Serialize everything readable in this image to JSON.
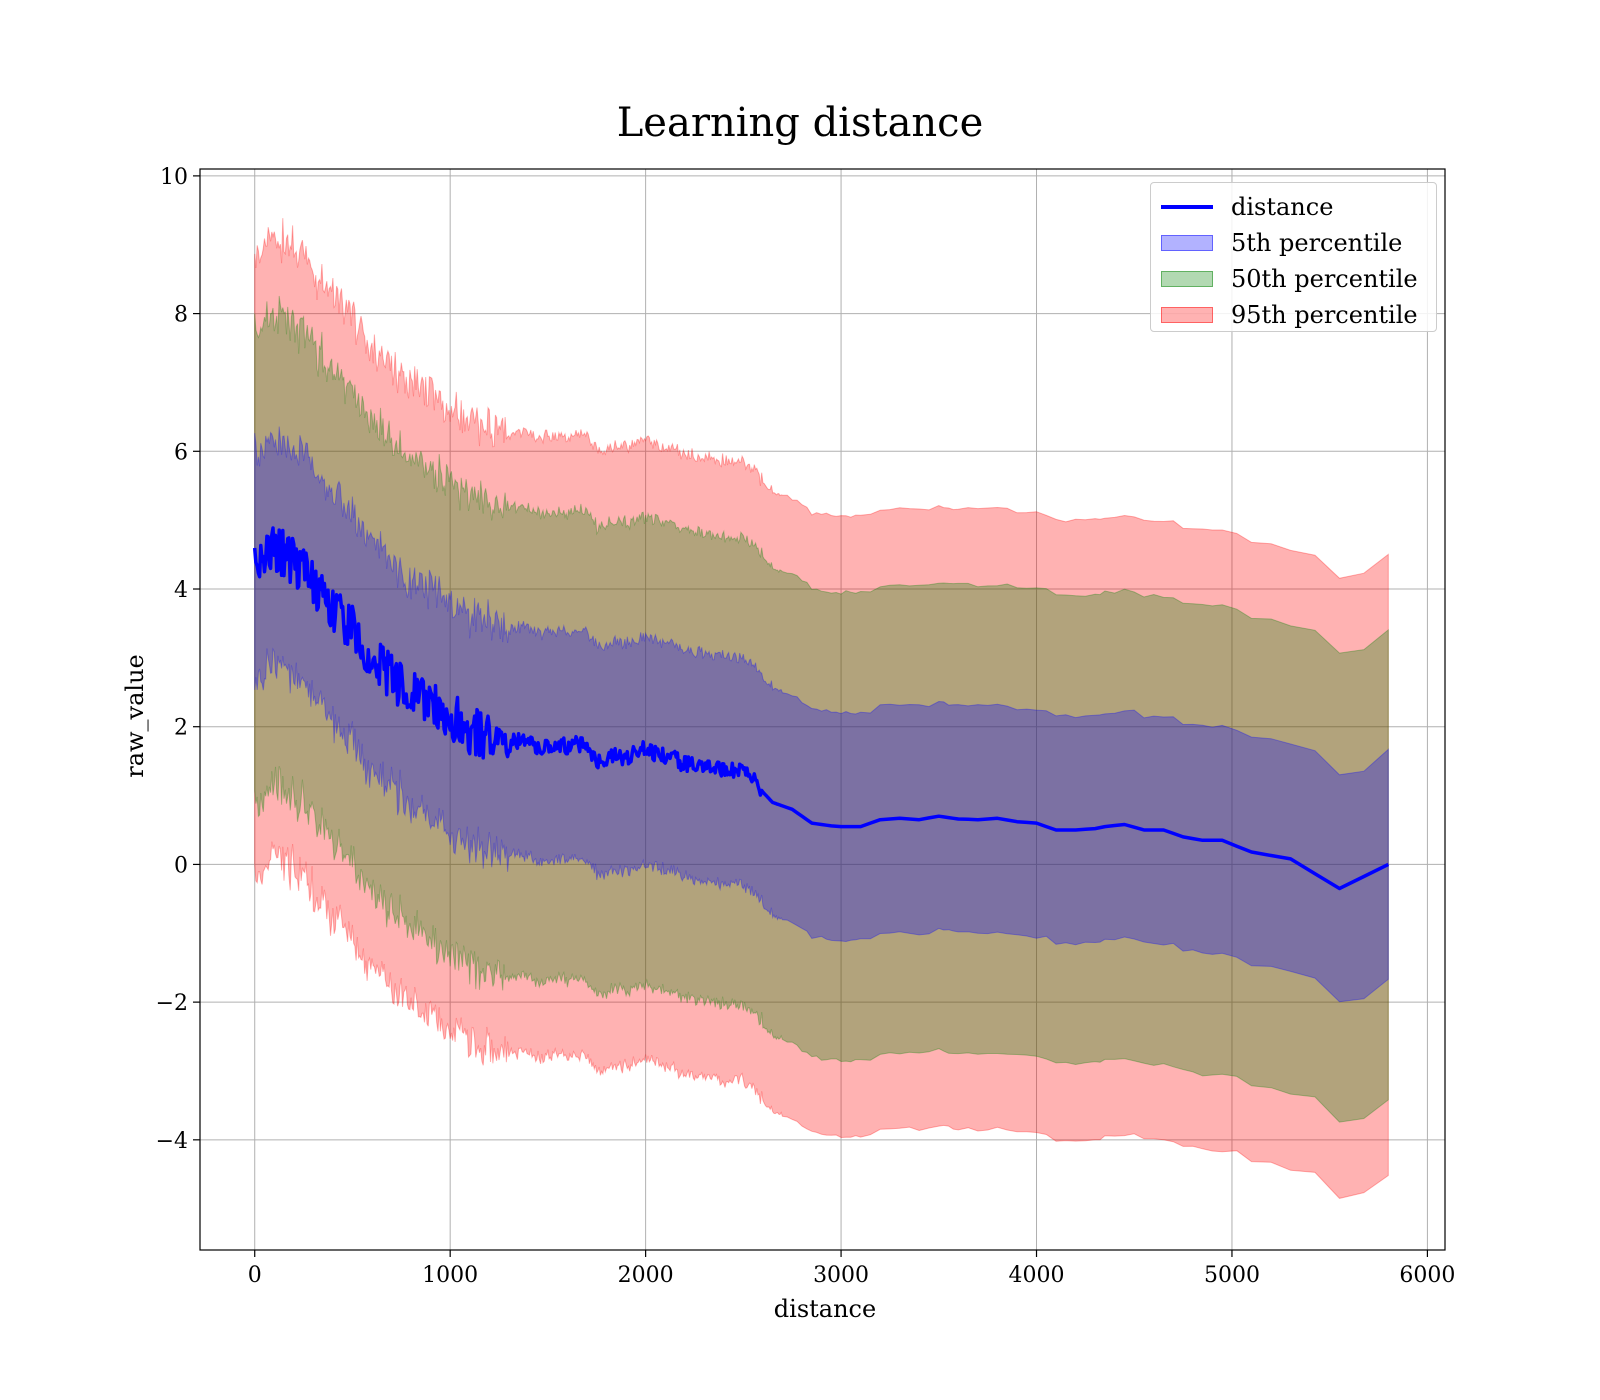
{
  "chart_data": {
    "type": "line",
    "title": "Learning distance",
    "xlabel": "distance",
    "ylabel": "raw_value",
    "xlim": [
      -280,
      6090
    ],
    "ylim": [
      -5.6,
      10.1
    ],
    "xticks": [
      0,
      1000,
      2000,
      3000,
      4000,
      5000,
      6000
    ],
    "yticks": [
      -4,
      -2,
      0,
      2,
      4,
      6,
      8,
      10
    ],
    "xtick_labels": [
      "0",
      "1000",
      "2000",
      "3000",
      "4000",
      "5000",
      "6000"
    ],
    "ytick_labels": [
      "−4",
      "−2",
      "0",
      "2",
      "4",
      "6",
      "8",
      "10"
    ],
    "grid": true,
    "legend_position": "top-right",
    "line": {
      "name": "distance",
      "color": "#0000ff",
      "x": [
        0,
        50,
        100,
        150,
        200,
        250,
        300,
        350,
        400,
        450,
        500,
        550,
        600,
        650,
        700,
        750,
        800,
        850,
        900,
        950,
        1000,
        1050,
        1100,
        1150,
        1200,
        1250,
        1300,
        1350,
        1400,
        1450,
        1500,
        1550,
        1600,
        1650,
        1700,
        1750,
        1800,
        1850,
        1900,
        1950,
        2000,
        2050,
        2100,
        2150,
        2200,
        2250,
        2300,
        2350,
        2400,
        2450,
        2500,
        2550,
        2600,
        2650,
        2700,
        2750,
        2800,
        2850,
        2900,
        2950,
        3000,
        3050,
        3100,
        3200,
        3300,
        3400,
        3500,
        3550,
        3600,
        3700,
        3800,
        3900,
        4000,
        4100,
        4200,
        4300,
        4350,
        4450,
        4550,
        4650,
        4750,
        4850,
        4950,
        5100,
        5300,
        5550,
        5800
      ],
      "y": [
        4.3,
        4.45,
        4.6,
        4.5,
        4.4,
        4.25,
        4.1,
        3.9,
        3.75,
        3.55,
        3.4,
        3.2,
        3.0,
        2.85,
        2.75,
        2.6,
        2.5,
        2.4,
        2.3,
        2.2,
        2.15,
        2.05,
        1.95,
        1.9,
        1.85,
        1.8,
        1.75,
        1.8,
        1.75,
        1.7,
        1.72,
        1.75,
        1.7,
        1.75,
        1.72,
        1.5,
        1.55,
        1.6,
        1.55,
        1.62,
        1.68,
        1.6,
        1.58,
        1.52,
        1.45,
        1.45,
        1.4,
        1.38,
        1.35,
        1.37,
        1.32,
        1.25,
        1.05,
        0.9,
        0.85,
        0.8,
        0.7,
        0.6,
        0.58,
        0.56,
        0.55,
        0.55,
        0.55,
        0.65,
        0.67,
        0.65,
        0.7,
        0.68,
        0.66,
        0.65,
        0.67,
        0.62,
        0.6,
        0.5,
        0.5,
        0.52,
        0.55,
        0.58,
        0.5,
        0.5,
        0.4,
        0.35,
        0.35,
        0.18,
        0.08,
        -0.35,
        0.0
      ]
    },
    "bands": [
      {
        "name": "5th percentile",
        "color": "#0000ff",
        "alpha": 0.3,
        "halfwidth": [
          1.65,
          1.65,
          1.65,
          1.65,
          1.65,
          1.65,
          1.65,
          1.65,
          1.65,
          1.65,
          1.65,
          1.65,
          1.65,
          1.65,
          1.65,
          1.65,
          1.65,
          1.65,
          1.65,
          1.65,
          1.65,
          1.65,
          1.65,
          1.65,
          1.65,
          1.65,
          1.65,
          1.65,
          1.65,
          1.65,
          1.65,
          1.65,
          1.65,
          1.65,
          1.65,
          1.65,
          1.65,
          1.65,
          1.65,
          1.65,
          1.65,
          1.65,
          1.65,
          1.65,
          1.65,
          1.65,
          1.65,
          1.65,
          1.65,
          1.65,
          1.65,
          1.65,
          1.65,
          1.65,
          1.65,
          1.65,
          1.65,
          1.65,
          1.65,
          1.65,
          1.65,
          1.65,
          1.65,
          1.65,
          1.65,
          1.65,
          1.65,
          1.65,
          1.65,
          1.65,
          1.65,
          1.65,
          1.65,
          1.65,
          1.65,
          1.65,
          1.65,
          1.65,
          1.65,
          1.65,
          1.65,
          1.65,
          1.65,
          1.65,
          1.65,
          1.65,
          1.65
        ]
      },
      {
        "name": "50th percentile",
        "color": "#008000",
        "alpha": 0.3,
        "halfwidth": [
          3.4,
          3.4,
          3.4,
          3.4,
          3.4,
          3.4,
          3.4,
          3.4,
          3.4,
          3.4,
          3.4,
          3.4,
          3.4,
          3.4,
          3.4,
          3.4,
          3.4,
          3.4,
          3.4,
          3.4,
          3.4,
          3.4,
          3.4,
          3.4,
          3.4,
          3.4,
          3.4,
          3.4,
          3.4,
          3.4,
          3.4,
          3.4,
          3.4,
          3.4,
          3.4,
          3.4,
          3.4,
          3.4,
          3.4,
          3.4,
          3.4,
          3.4,
          3.4,
          3.4,
          3.4,
          3.4,
          3.4,
          3.4,
          3.4,
          3.4,
          3.4,
          3.4,
          3.4,
          3.4,
          3.4,
          3.4,
          3.4,
          3.4,
          3.4,
          3.4,
          3.4,
          3.4,
          3.4,
          3.4,
          3.4,
          3.4,
          3.4,
          3.4,
          3.4,
          3.4,
          3.4,
          3.4,
          3.4,
          3.4,
          3.4,
          3.4,
          3.4,
          3.4,
          3.4,
          3.4,
          3.4,
          3.4,
          3.4,
          3.4,
          3.4,
          3.4,
          3.4
        ]
      },
      {
        "name": "95th percentile",
        "color": "#ff0000",
        "alpha": 0.3,
        "halfwidth": [
          4.5,
          4.5,
          4.5,
          4.5,
          4.5,
          4.5,
          4.5,
          4.5,
          4.5,
          4.5,
          4.5,
          4.5,
          4.5,
          4.5,
          4.5,
          4.5,
          4.5,
          4.5,
          4.5,
          4.5,
          4.5,
          4.5,
          4.5,
          4.5,
          4.5,
          4.5,
          4.5,
          4.5,
          4.5,
          4.5,
          4.5,
          4.5,
          4.5,
          4.5,
          4.5,
          4.5,
          4.5,
          4.5,
          4.5,
          4.5,
          4.5,
          4.5,
          4.5,
          4.5,
          4.5,
          4.5,
          4.5,
          4.5,
          4.5,
          4.5,
          4.5,
          4.5,
          4.5,
          4.5,
          4.5,
          4.5,
          4.5,
          4.5,
          4.5,
          4.5,
          4.5,
          4.5,
          4.5,
          4.5,
          4.5,
          4.5,
          4.5,
          4.5,
          4.5,
          4.5,
          4.5,
          4.5,
          4.5,
          4.5,
          4.5,
          4.5,
          4.5,
          4.5,
          4.5,
          4.5,
          4.5,
          4.5,
          4.5,
          4.5,
          4.5,
          4.5,
          4.5
        ]
      }
    ]
  }
}
